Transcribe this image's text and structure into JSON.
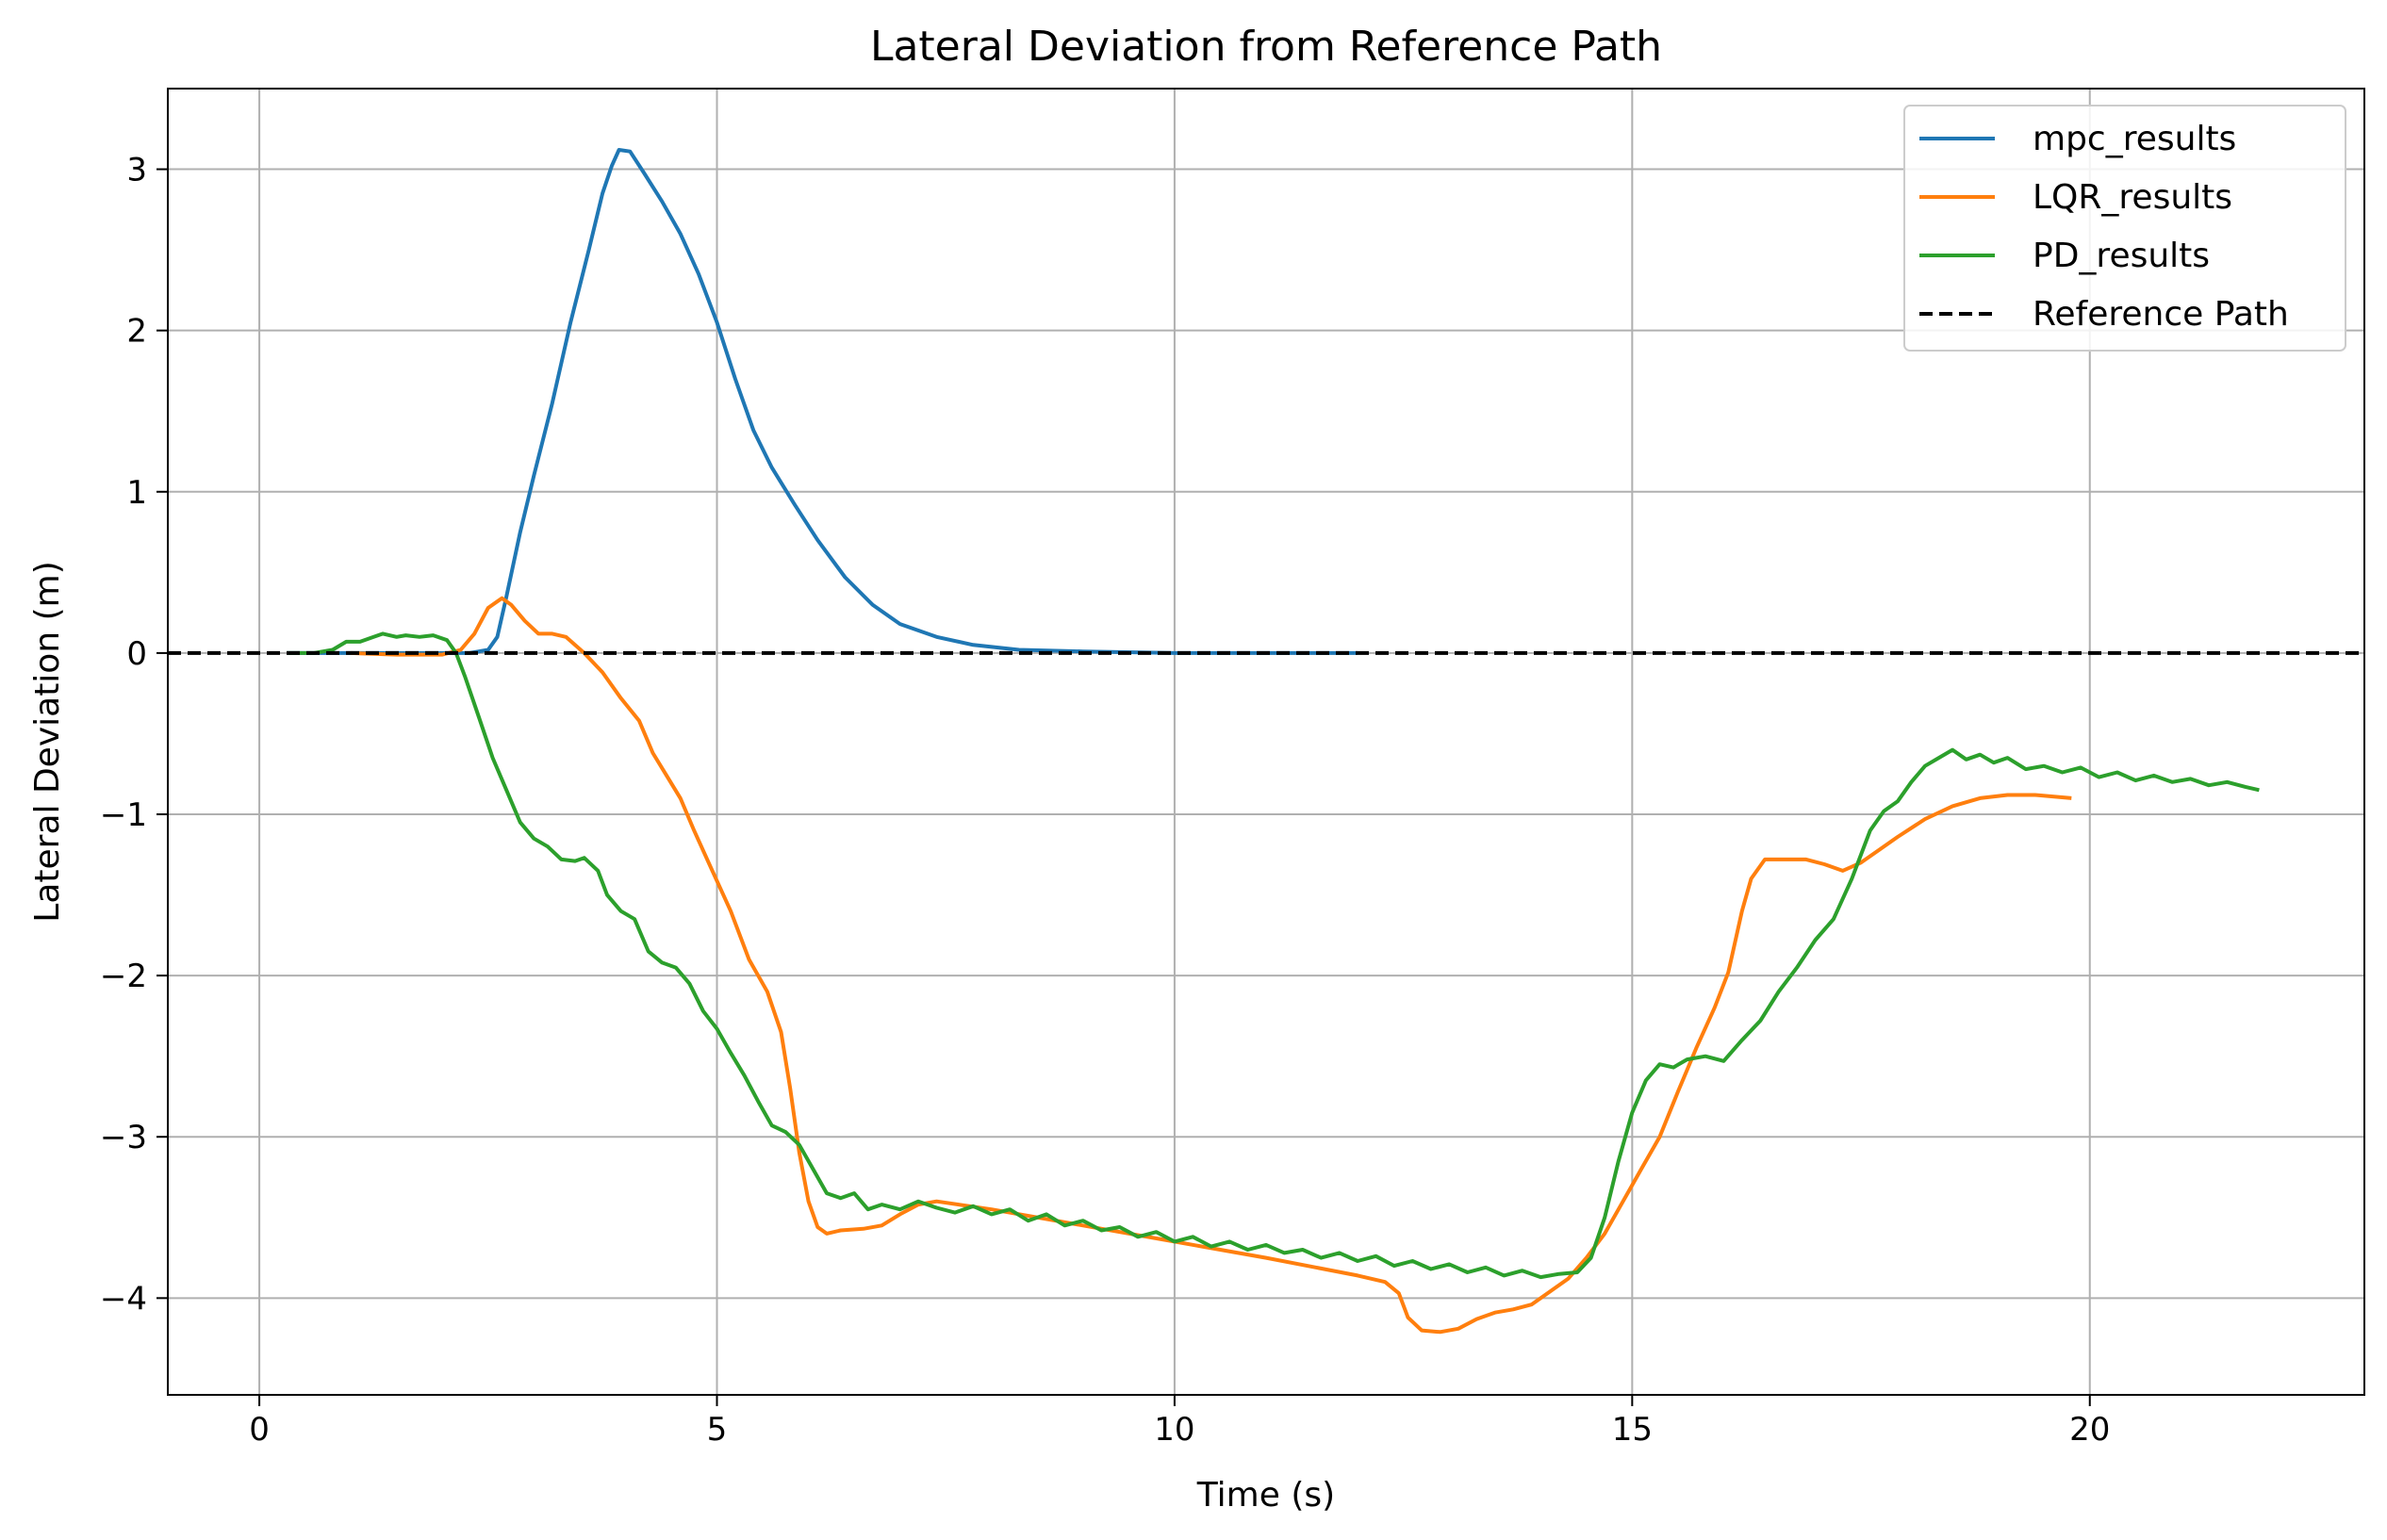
{
  "chart_data": {
    "type": "line",
    "title": "Lateral Deviation from Reference Path",
    "xlabel": "Time (s)",
    "ylabel": "Lateral Deviation (m)",
    "xlim": [
      -1.0,
      23.0
    ],
    "ylim": [
      -4.6,
      3.5
    ],
    "xticks": [
      0,
      5,
      10,
      15,
      20
    ],
    "xtick_labels": [
      "0",
      "5",
      "10",
      "15",
      "20"
    ],
    "yticks": [
      3,
      2,
      1,
      0,
      -1,
      -2,
      -3,
      -4
    ],
    "ytick_labels": [
      "3",
      "2",
      "1",
      "0",
      "−1",
      "−2",
      "−3",
      "−4"
    ],
    "grid": true,
    "legend_position": "top-right",
    "series": [
      {
        "name": "mpc_results",
        "color": "#1f77b4",
        "style": "solid",
        "points": [
          [
            0.3,
            0
          ],
          [
            1.0,
            0
          ],
          [
            2.0,
            0
          ],
          [
            2.3,
            0
          ],
          [
            2.5,
            0.02
          ],
          [
            2.6,
            0.1
          ],
          [
            2.7,
            0.35
          ],
          [
            2.85,
            0.75
          ],
          [
            3.0,
            1.1
          ],
          [
            3.2,
            1.55
          ],
          [
            3.4,
            2.05
          ],
          [
            3.6,
            2.5
          ],
          [
            3.75,
            2.85
          ],
          [
            3.85,
            3.02
          ],
          [
            3.93,
            3.12
          ],
          [
            4.05,
            3.11
          ],
          [
            4.2,
            2.98
          ],
          [
            4.4,
            2.8
          ],
          [
            4.6,
            2.6
          ],
          [
            4.8,
            2.35
          ],
          [
            5.0,
            2.05
          ],
          [
            5.2,
            1.7
          ],
          [
            5.4,
            1.38
          ],
          [
            5.6,
            1.15
          ],
          [
            5.85,
            0.92
          ],
          [
            6.1,
            0.7
          ],
          [
            6.4,
            0.47
          ],
          [
            6.7,
            0.3
          ],
          [
            7.0,
            0.18
          ],
          [
            7.4,
            0.1
          ],
          [
            7.8,
            0.05
          ],
          [
            8.3,
            0.02
          ],
          [
            9.0,
            0.01
          ],
          [
            10.0,
            0
          ],
          [
            12.0,
            0
          ]
        ]
      },
      {
        "name": "LQR_results",
        "color": "#ff7f0e",
        "style": "solid",
        "points": [
          [
            1.0,
            0
          ],
          [
            1.5,
            -0.01
          ],
          [
            2.0,
            -0.01
          ],
          [
            2.2,
            0.02
          ],
          [
            2.35,
            0.12
          ],
          [
            2.5,
            0.28
          ],
          [
            2.65,
            0.34
          ],
          [
            2.75,
            0.3
          ],
          [
            2.9,
            0.2
          ],
          [
            3.05,
            0.12
          ],
          [
            3.2,
            0.12
          ],
          [
            3.35,
            0.1
          ],
          [
            3.55,
            0
          ],
          [
            3.75,
            -0.12
          ],
          [
            3.95,
            -0.28
          ],
          [
            4.15,
            -0.42
          ],
          [
            4.3,
            -0.62
          ],
          [
            4.45,
            -0.76
          ],
          [
            4.6,
            -0.9
          ],
          [
            4.75,
            -1.1
          ],
          [
            4.95,
            -1.35
          ],
          [
            5.15,
            -1.6
          ],
          [
            5.35,
            -1.9
          ],
          [
            5.55,
            -2.1
          ],
          [
            5.7,
            -2.35
          ],
          [
            5.8,
            -2.7
          ],
          [
            5.9,
            -3.1
          ],
          [
            6.0,
            -3.4
          ],
          [
            6.1,
            -3.56
          ],
          [
            6.2,
            -3.6
          ],
          [
            6.35,
            -3.58
          ],
          [
            6.6,
            -3.57
          ],
          [
            6.8,
            -3.55
          ],
          [
            7.0,
            -3.48
          ],
          [
            7.2,
            -3.42
          ],
          [
            7.4,
            -3.4
          ],
          [
            8.0,
            -3.45
          ],
          [
            9.0,
            -3.55
          ],
          [
            10.0,
            -3.65
          ],
          [
            11.0,
            -3.75
          ],
          [
            12.0,
            -3.86
          ],
          [
            12.3,
            -3.9
          ],
          [
            12.45,
            -3.97
          ],
          [
            12.55,
            -4.12
          ],
          [
            12.7,
            -4.2
          ],
          [
            12.9,
            -4.21
          ],
          [
            13.1,
            -4.19
          ],
          [
            13.3,
            -4.13
          ],
          [
            13.5,
            -4.09
          ],
          [
            13.7,
            -4.07
          ],
          [
            13.9,
            -4.04
          ],
          [
            14.1,
            -3.96
          ],
          [
            14.3,
            -3.88
          ],
          [
            14.5,
            -3.75
          ],
          [
            14.7,
            -3.6
          ],
          [
            14.9,
            -3.4
          ],
          [
            15.1,
            -3.2
          ],
          [
            15.3,
            -3.0
          ],
          [
            15.5,
            -2.72
          ],
          [
            15.7,
            -2.45
          ],
          [
            15.9,
            -2.2
          ],
          [
            16.05,
            -1.98
          ],
          [
            16.2,
            -1.6
          ],
          [
            16.3,
            -1.4
          ],
          [
            16.45,
            -1.28
          ],
          [
            16.7,
            -1.28
          ],
          [
            16.9,
            -1.28
          ],
          [
            17.1,
            -1.31
          ],
          [
            17.3,
            -1.35
          ],
          [
            17.5,
            -1.3
          ],
          [
            17.7,
            -1.22
          ],
          [
            17.9,
            -1.14
          ],
          [
            18.2,
            -1.03
          ],
          [
            18.5,
            -0.95
          ],
          [
            18.8,
            -0.9
          ],
          [
            19.1,
            -0.88
          ],
          [
            19.4,
            -0.88
          ],
          [
            19.8,
            -0.9
          ]
        ]
      },
      {
        "name": "PD_results",
        "color": "#2ca02c",
        "style": "solid",
        "points": [
          [
            0.3,
            0
          ],
          [
            0.6,
            0
          ],
          [
            0.8,
            0.02
          ],
          [
            0.95,
            0.07
          ],
          [
            1.1,
            0.07
          ],
          [
            1.25,
            0.1
          ],
          [
            1.35,
            0.12
          ],
          [
            1.5,
            0.1
          ],
          [
            1.6,
            0.11
          ],
          [
            1.75,
            0.1
          ],
          [
            1.9,
            0.11
          ],
          [
            2.05,
            0.08
          ],
          [
            2.15,
            0
          ],
          [
            2.25,
            -0.15
          ],
          [
            2.4,
            -0.4
          ],
          [
            2.55,
            -0.65
          ],
          [
            2.7,
            -0.85
          ],
          [
            2.85,
            -1.05
          ],
          [
            3.0,
            -1.15
          ],
          [
            3.15,
            -1.2
          ],
          [
            3.3,
            -1.28
          ],
          [
            3.45,
            -1.29
          ],
          [
            3.55,
            -1.27
          ],
          [
            3.7,
            -1.35
          ],
          [
            3.8,
            -1.5
          ],
          [
            3.95,
            -1.6
          ],
          [
            4.1,
            -1.65
          ],
          [
            4.25,
            -1.85
          ],
          [
            4.4,
            -1.92
          ],
          [
            4.55,
            -1.95
          ],
          [
            4.7,
            -2.05
          ],
          [
            4.85,
            -2.22
          ],
          [
            5.0,
            -2.33
          ],
          [
            5.15,
            -2.48
          ],
          [
            5.3,
            -2.62
          ],
          [
            5.45,
            -2.78
          ],
          [
            5.6,
            -2.93
          ],
          [
            5.75,
            -2.97
          ],
          [
            5.9,
            -3.05
          ],
          [
            6.05,
            -3.2
          ],
          [
            6.2,
            -3.35
          ],
          [
            6.35,
            -3.38
          ],
          [
            6.5,
            -3.35
          ],
          [
            6.65,
            -3.45
          ],
          [
            6.8,
            -3.42
          ],
          [
            7.0,
            -3.45
          ],
          [
            7.2,
            -3.4
          ],
          [
            7.4,
            -3.44
          ],
          [
            7.6,
            -3.47
          ],
          [
            7.8,
            -3.43
          ],
          [
            8.0,
            -3.48
          ],
          [
            8.2,
            -3.45
          ],
          [
            8.4,
            -3.52
          ],
          [
            8.6,
            -3.48
          ],
          [
            8.8,
            -3.55
          ],
          [
            9.0,
            -3.52
          ],
          [
            9.2,
            -3.58
          ],
          [
            9.4,
            -3.56
          ],
          [
            9.6,
            -3.62
          ],
          [
            9.8,
            -3.59
          ],
          [
            10.0,
            -3.65
          ],
          [
            10.2,
            -3.62
          ],
          [
            10.4,
            -3.68
          ],
          [
            10.6,
            -3.65
          ],
          [
            10.8,
            -3.7
          ],
          [
            11.0,
            -3.67
          ],
          [
            11.2,
            -3.72
          ],
          [
            11.4,
            -3.7
          ],
          [
            11.6,
            -3.75
          ],
          [
            11.8,
            -3.72
          ],
          [
            12.0,
            -3.77
          ],
          [
            12.2,
            -3.74
          ],
          [
            12.4,
            -3.8
          ],
          [
            12.6,
            -3.77
          ],
          [
            12.8,
            -3.82
          ],
          [
            13.0,
            -3.79
          ],
          [
            13.2,
            -3.84
          ],
          [
            13.4,
            -3.81
          ],
          [
            13.6,
            -3.86
          ],
          [
            13.8,
            -3.83
          ],
          [
            14.0,
            -3.87
          ],
          [
            14.2,
            -3.85
          ],
          [
            14.4,
            -3.84
          ],
          [
            14.55,
            -3.75
          ],
          [
            14.7,
            -3.5
          ],
          [
            14.85,
            -3.15
          ],
          [
            15.0,
            -2.85
          ],
          [
            15.15,
            -2.65
          ],
          [
            15.3,
            -2.55
          ],
          [
            15.45,
            -2.57
          ],
          [
            15.6,
            -2.52
          ],
          [
            15.8,
            -2.5
          ],
          [
            16.0,
            -2.53
          ],
          [
            16.2,
            -2.4
          ],
          [
            16.4,
            -2.28
          ],
          [
            16.6,
            -2.1
          ],
          [
            16.8,
            -1.95
          ],
          [
            17.0,
            -1.78
          ],
          [
            17.2,
            -1.65
          ],
          [
            17.4,
            -1.4
          ],
          [
            17.6,
            -1.1
          ],
          [
            17.75,
            -0.98
          ],
          [
            17.9,
            -0.92
          ],
          [
            18.05,
            -0.8
          ],
          [
            18.2,
            -0.7
          ],
          [
            18.35,
            -0.65
          ],
          [
            18.5,
            -0.6
          ],
          [
            18.65,
            -0.66
          ],
          [
            18.8,
            -0.63
          ],
          [
            18.95,
            -0.68
          ],
          [
            19.1,
            -0.65
          ],
          [
            19.3,
            -0.72
          ],
          [
            19.5,
            -0.7
          ],
          [
            19.7,
            -0.74
          ],
          [
            19.9,
            -0.71
          ],
          [
            20.1,
            -0.77
          ],
          [
            20.3,
            -0.74
          ],
          [
            20.5,
            -0.79
          ],
          [
            20.7,
            -0.76
          ],
          [
            20.9,
            -0.8
          ],
          [
            21.1,
            -0.78
          ],
          [
            21.3,
            -0.82
          ],
          [
            21.5,
            -0.8
          ],
          [
            21.7,
            -0.83
          ],
          [
            21.85,
            -0.85
          ]
        ]
      },
      {
        "name": "Reference Path",
        "color": "#000000",
        "style": "dashed",
        "points": [
          [
            -1.0,
            0
          ],
          [
            23.0,
            0
          ]
        ]
      }
    ]
  }
}
